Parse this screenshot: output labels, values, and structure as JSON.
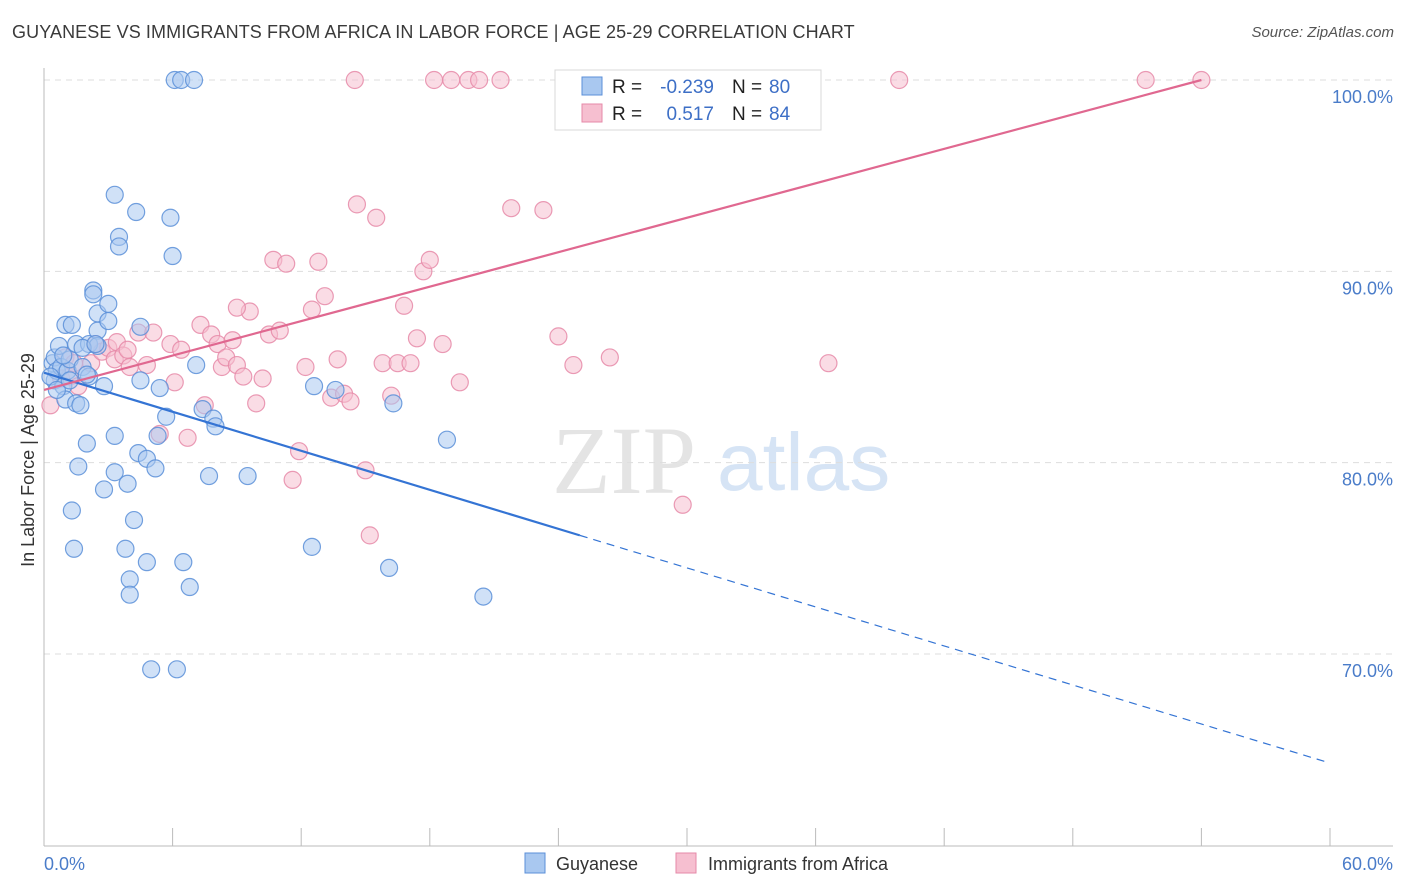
{
  "title": "GUYANESE VS IMMIGRANTS FROM AFRICA IN LABOR FORCE | AGE 25-29 CORRELATION CHART",
  "source": "Source: ZipAtlas.com",
  "watermark": {
    "zip": "ZIP",
    "atlas": "atlas"
  },
  "colors": {
    "blue_fill": "#a9c8f0",
    "blue_stroke": "#5b8fd8",
    "blue_line": "#3474d4",
    "pink_fill": "#f6bfd0",
    "pink_stroke": "#e68aa8",
    "pink_line": "#e06890",
    "tick_text": "#4a7cc9",
    "grid": "#dddddd"
  },
  "chart_data": {
    "type": "scatter",
    "title": "GUYANESE VS IMMIGRANTS FROM AFRICA IN LABOR FORCE | AGE 25-29 CORRELATION CHART",
    "xlabel": "",
    "ylabel": "In Labor Force | Age 25-29",
    "xlim": [
      0,
      60
    ],
    "ylim": [
      60,
      101.5
    ],
    "x_tick_labels": {
      "left": "0.0%",
      "right": "60.0%"
    },
    "y_ticks": [
      {
        "value": 100,
        "label": "100.0%"
      },
      {
        "value": 90,
        "label": "90.0%"
      },
      {
        "value": 80,
        "label": "80.0%"
      },
      {
        "value": 70,
        "label": "70.0%"
      }
    ],
    "legend_box": {
      "rows": [
        {
          "r_label": "R =",
          "r_value": "-0.239",
          "n_label": "N =",
          "n_value": "80"
        },
        {
          "r_label": "R =",
          "r_value": "0.517",
          "n_label": "N =",
          "n_value": "84"
        }
      ]
    },
    "series": [
      {
        "name": "Guyanese",
        "color": "blue",
        "trend": {
          "x0": 0,
          "y0": 84.7,
          "x1": 25,
          "y1": 76.2,
          "dash_to_x": 60,
          "dash_to_y": 64.3
        },
        "points": [
          [
            0.4,
            85.2
          ],
          [
            0.5,
            84.3
          ],
          [
            0.5,
            85.5
          ],
          [
            0.6,
            84.8
          ],
          [
            0.7,
            86.1
          ],
          [
            0.8,
            85.0
          ],
          [
            0.9,
            84.0
          ],
          [
            1.0,
            83.3
          ],
          [
            1.0,
            87.2
          ],
          [
            1.1,
            84.8
          ],
          [
            1.2,
            85.4
          ],
          [
            1.3,
            77.5
          ],
          [
            1.3,
            87.2
          ],
          [
            1.4,
            75.5
          ],
          [
            1.5,
            83.1
          ],
          [
            1.5,
            86.2
          ],
          [
            1.6,
            79.8
          ],
          [
            1.7,
            83.0
          ],
          [
            1.8,
            85.0
          ],
          [
            2.0,
            81.0
          ],
          [
            2.1,
            86.2
          ],
          [
            2.1,
            84.5
          ],
          [
            2.3,
            89.0
          ],
          [
            2.3,
            88.8
          ],
          [
            2.5,
            86.9
          ],
          [
            2.5,
            86.1
          ],
          [
            2.5,
            87.8
          ],
          [
            2.8,
            78.6
          ],
          [
            2.8,
            84.0
          ],
          [
            3.0,
            88.3
          ],
          [
            3.0,
            87.4
          ],
          [
            3.3,
            94.0
          ],
          [
            3.3,
            79.5
          ],
          [
            3.3,
            81.4
          ],
          [
            3.5,
            91.8
          ],
          [
            3.5,
            91.3
          ],
          [
            3.8,
            75.5
          ],
          [
            3.9,
            78.9
          ],
          [
            4.0,
            73.9
          ],
          [
            4.0,
            73.1
          ],
          [
            4.2,
            77.0
          ],
          [
            4.3,
            93.1
          ],
          [
            4.4,
            80.5
          ],
          [
            4.5,
            87.1
          ],
          [
            4.5,
            84.3
          ],
          [
            4.8,
            74.8
          ],
          [
            4.8,
            80.2
          ],
          [
            5.0,
            69.2
          ],
          [
            5.2,
            79.7
          ],
          [
            5.3,
            81.4
          ],
          [
            5.4,
            83.9
          ],
          [
            5.7,
            82.4
          ],
          [
            5.9,
            92.8
          ],
          [
            6.0,
            90.8
          ],
          [
            6.1,
            100.0
          ],
          [
            6.2,
            69.2
          ],
          [
            6.4,
            100.0
          ],
          [
            6.5,
            74.8
          ],
          [
            6.8,
            73.5
          ],
          [
            7.0,
            100.0
          ],
          [
            7.1,
            85.1
          ],
          [
            7.4,
            82.8
          ],
          [
            7.7,
            79.3
          ],
          [
            7.9,
            82.3
          ],
          [
            8.0,
            81.9
          ],
          [
            9.5,
            79.3
          ],
          [
            12.5,
            75.6
          ],
          [
            12.6,
            84.0
          ],
          [
            13.6,
            83.8
          ],
          [
            16.1,
            74.5
          ],
          [
            16.3,
            83.1
          ],
          [
            18.8,
            81.2
          ],
          [
            20.5,
            73.0
          ],
          [
            0.3,
            84.5
          ],
          [
            0.6,
            83.8
          ],
          [
            1.8,
            86.0
          ],
          [
            2.4,
            86.2
          ],
          [
            1.2,
            84.3
          ],
          [
            0.9,
            85.6
          ],
          [
            2.0,
            84.6
          ]
        ]
      },
      {
        "name": "Immigrants from Africa",
        "color": "pink",
        "trend": {
          "x0": 0,
          "y0": 83.8,
          "x1": 54,
          "y1": 100.0
        },
        "points": [
          [
            0.3,
            83.0
          ],
          [
            0.8,
            84.4
          ],
          [
            1.0,
            85.5
          ],
          [
            1.2,
            84.5
          ],
          [
            1.4,
            85.2
          ],
          [
            1.6,
            84.0
          ],
          [
            2.2,
            85.2
          ],
          [
            2.4,
            86.2
          ],
          [
            2.7,
            85.8
          ],
          [
            3.0,
            86.0
          ],
          [
            3.3,
            85.4
          ],
          [
            3.4,
            86.3
          ],
          [
            3.7,
            85.6
          ],
          [
            3.9,
            85.9
          ],
          [
            4.0,
            85.0
          ],
          [
            4.4,
            86.8
          ],
          [
            4.8,
            85.1
          ],
          [
            5.1,
            86.8
          ],
          [
            5.4,
            81.5
          ],
          [
            5.9,
            86.2
          ],
          [
            6.1,
            84.2
          ],
          [
            6.4,
            85.9
          ],
          [
            6.7,
            81.3
          ],
          [
            7.3,
            87.2
          ],
          [
            7.5,
            83.0
          ],
          [
            7.8,
            86.7
          ],
          [
            8.1,
            86.2
          ],
          [
            8.3,
            85.0
          ],
          [
            8.5,
            85.5
          ],
          [
            8.8,
            86.4
          ],
          [
            9.0,
            85.1
          ],
          [
            9.3,
            84.5
          ],
          [
            9.6,
            87.9
          ],
          [
            9.9,
            83.1
          ],
          [
            10.2,
            84.4
          ],
          [
            10.5,
            86.7
          ],
          [
            10.7,
            90.6
          ],
          [
            11.0,
            86.9
          ],
          [
            11.3,
            90.4
          ],
          [
            11.6,
            79.1
          ],
          [
            11.9,
            80.6
          ],
          [
            12.2,
            85.0
          ],
          [
            12.5,
            88.0
          ],
          [
            12.8,
            90.5
          ],
          [
            13.1,
            88.7
          ],
          [
            13.4,
            83.4
          ],
          [
            13.7,
            85.4
          ],
          [
            14.0,
            83.6
          ],
          [
            14.3,
            83.2
          ],
          [
            14.6,
            93.5
          ],
          [
            15.0,
            79.6
          ],
          [
            15.2,
            76.2
          ],
          [
            15.5,
            92.8
          ],
          [
            15.8,
            85.2
          ],
          [
            16.2,
            83.5
          ],
          [
            16.5,
            85.2
          ],
          [
            16.8,
            88.2
          ],
          [
            17.1,
            85.2
          ],
          [
            17.4,
            86.5
          ],
          [
            17.7,
            90.0
          ],
          [
            18.0,
            90.6
          ],
          [
            18.6,
            86.2
          ],
          [
            19.4,
            84.2
          ],
          [
            19.8,
            100.0
          ],
          [
            20.3,
            100.0
          ],
          [
            21.3,
            100.0
          ],
          [
            21.8,
            93.3
          ],
          [
            23.3,
            93.2
          ],
          [
            24.0,
            86.6
          ],
          [
            24.7,
            85.1
          ],
          [
            25.3,
            100.0
          ],
          [
            25.9,
            100.0
          ],
          [
            26.4,
            85.5
          ],
          [
            29.3,
            100.0
          ],
          [
            29.8,
            77.8
          ],
          [
            33.0,
            100.0
          ],
          [
            36.6,
            85.2
          ],
          [
            39.9,
            100.0
          ],
          [
            51.4,
            100.0
          ],
          [
            54.0,
            100.0
          ],
          [
            14.5,
            100.0
          ],
          [
            19.0,
            100.0
          ],
          [
            18.2,
            100.0
          ],
          [
            9.0,
            88.1
          ]
        ]
      }
    ]
  },
  "legend": {
    "items": [
      {
        "label": "Guyanese",
        "color": "blue"
      },
      {
        "label": "Immigrants from Africa",
        "color": "pink"
      }
    ]
  }
}
